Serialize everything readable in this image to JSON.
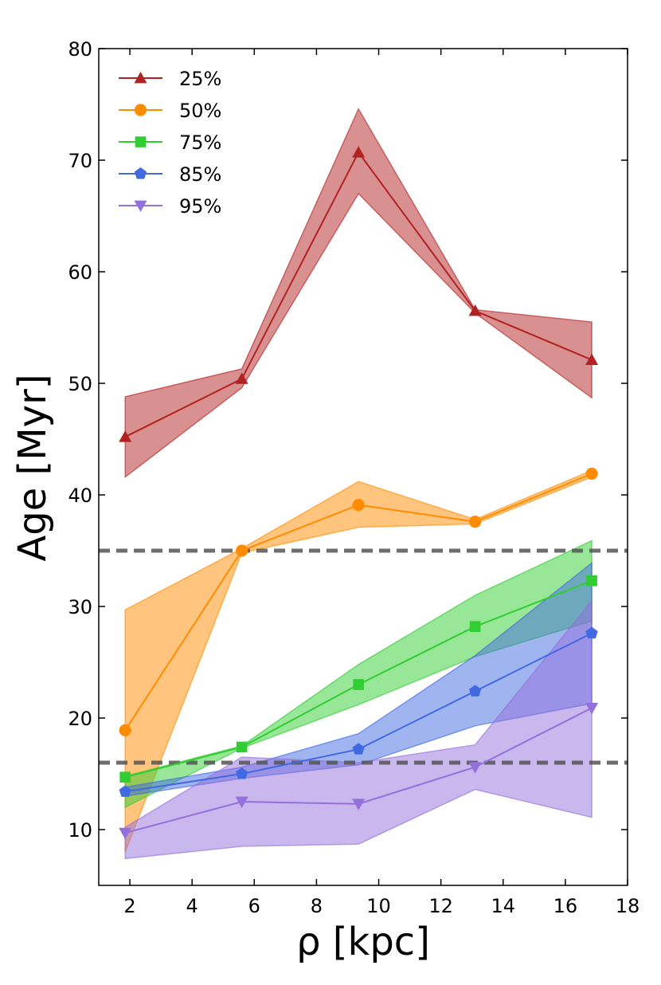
{
  "chart_data": {
    "type": "line",
    "title": "",
    "xlabel": "ρ [kpc]",
    "ylabel": "Age [Myr]",
    "xlim": [
      1,
      18
    ],
    "ylim": [
      5,
      80
    ],
    "xticks": [
      2,
      4,
      6,
      8,
      10,
      12,
      14,
      16,
      18
    ],
    "yticks": [
      10,
      20,
      30,
      40,
      50,
      60,
      70,
      80
    ],
    "x": [
      1.85,
      5.6,
      9.35,
      13.1,
      16.85
    ],
    "legend_position": "top-left",
    "series": [
      {
        "name": "25%",
        "color": "#b22222",
        "marker": "triangle-up",
        "values": [
          45.2,
          50.4,
          70.7,
          56.5,
          52.1
        ],
        "lower": [
          41.6,
          49.6,
          67.0,
          56.3,
          48.7
        ],
        "upper": [
          48.8,
          51.3,
          74.6,
          56.6,
          55.5
        ]
      },
      {
        "name": "50%",
        "color": "#ff8c00",
        "marker": "circle",
        "values": [
          18.9,
          35.0,
          39.1,
          37.6,
          41.9
        ],
        "lower": [
          8.0,
          34.8,
          37.1,
          37.4,
          41.6
        ],
        "upper": [
          29.7,
          35.2,
          41.2,
          37.8,
          42.2
        ]
      },
      {
        "name": "75%",
        "color": "#32cd32",
        "marker": "square",
        "values": [
          14.7,
          17.4,
          23.0,
          28.2,
          32.3
        ],
        "lower": [
          12.0,
          17.3,
          21.2,
          25.5,
          28.7
        ],
        "upper": [
          14.8,
          17.5,
          24.8,
          31.0,
          35.9
        ]
      },
      {
        "name": "85%",
        "color": "#4169e1",
        "marker": "pentagon",
        "values": [
          13.4,
          15.0,
          17.2,
          22.4,
          27.6
        ],
        "lower": [
          13.0,
          14.6,
          15.8,
          19.3,
          21.3
        ],
        "upper": [
          13.8,
          15.6,
          18.6,
          25.6,
          33.9
        ]
      },
      {
        "name": "95%",
        "color": "#9370db",
        "marker": "triangle-down",
        "values": [
          9.7,
          12.5,
          12.3,
          15.6,
          20.9
        ],
        "lower": [
          7.4,
          8.5,
          8.7,
          13.6,
          11.1
        ],
        "upper": [
          10.2,
          16.5,
          16.0,
          17.6,
          30.5
        ]
      }
    ],
    "hlines": [
      {
        "y": 35,
        "color": "#555555",
        "style": "dashed"
      },
      {
        "y": 16,
        "color": "#555555",
        "style": "dashed"
      }
    ]
  }
}
